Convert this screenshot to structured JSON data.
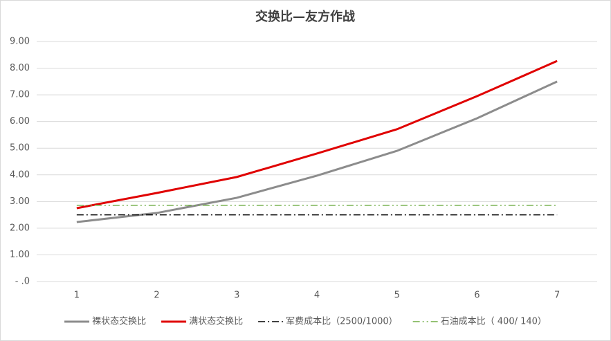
{
  "chart_data": {
    "type": "line",
    "title": "交换比—友方作战",
    "x": [
      1,
      2,
      3,
      4,
      5,
      6,
      7
    ],
    "xlim": [
      0.5,
      7.5
    ],
    "ylim": [
      0,
      9
    ],
    "yticks": [
      {
        "value": 0,
        "label": "- .0"
      },
      {
        "value": 1,
        "label": "1.00"
      },
      {
        "value": 2,
        "label": "2.00"
      },
      {
        "value": 3,
        "label": "3.00"
      },
      {
        "value": 4,
        "label": "4.00"
      },
      {
        "value": 5,
        "label": "5.00"
      },
      {
        "value": 6,
        "label": "6.00"
      },
      {
        "value": 7,
        "label": "7.00"
      },
      {
        "value": 8,
        "label": "8.00"
      },
      {
        "value": 9,
        "label": "9.00"
      }
    ],
    "grid": true,
    "legend": "bottom",
    "series": [
      {
        "name": "裸状态交换比",
        "color": "#8c8c8c",
        "dash": "solid",
        "values": [
          2.23,
          2.57,
          3.14,
          3.97,
          4.9,
          6.12,
          7.5
        ]
      },
      {
        "name": "满状态交换比",
        "color": "#e00000",
        "dash": "solid",
        "values": [
          2.75,
          3.32,
          3.92,
          4.8,
          5.71,
          6.95,
          8.27
        ]
      },
      {
        "name": "军费成本比（2500/1000）",
        "color": "#000000",
        "dash": "dash-dot",
        "values": [
          2.5,
          2.5,
          2.5,
          2.5,
          2.5,
          2.5,
          2.5
        ]
      },
      {
        "name": "石油成本比（ 400/ 140）",
        "color": "#70ad47",
        "dash": "dash-dot-dot",
        "values": [
          2.86,
          2.86,
          2.86,
          2.86,
          2.86,
          2.86,
          2.86
        ]
      }
    ]
  }
}
